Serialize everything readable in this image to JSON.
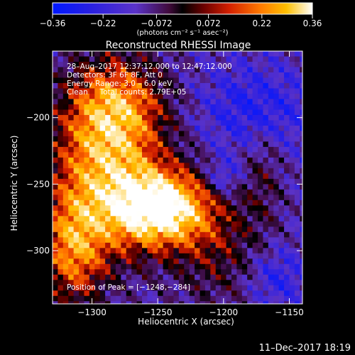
{
  "chart_data": {
    "type": "heatmap",
    "title": "Reconstructed RHESSI Image",
    "xlabel": "Heliocentric X (arcsec)",
    "ylabel": "Heliocentric Y (arcsec)",
    "xlim": [
      -1330,
      -1140
    ],
    "ylim": [
      -340,
      -150
    ],
    "xticks": [
      -1300,
      -1250,
      -1200,
      -1150
    ],
    "yticks": [
      -200,
      -250,
      -300
    ],
    "xtick_labels": [
      "−1300",
      "−1250",
      "−1200",
      "−1150"
    ],
    "ytick_labels": [
      "−200",
      "−250",
      "−300"
    ],
    "colorbar": {
      "range": [
        -0.36,
        0.36
      ],
      "ticks": [
        -0.36,
        -0.22,
        -0.072,
        0.072,
        0.22,
        0.36
      ],
      "tick_labels": [
        "−0.36",
        "−0.22",
        "−0.072",
        "0.072",
        "0.22",
        "0.36"
      ],
      "unit_label": "(photons cm⁻² s⁻¹ asec⁻²)"
    },
    "annotations": [
      "28–Aug–2017 12:37:12.000 to 12:47:12.000",
      "Detectors: 3F 6F 8F, Att 0",
      "Energy Range: 3.0 – 6.0 keV",
      "Clean     Total counts: 2.79E+05"
    ],
    "peak_label": "Position of Peak = [−1248,−284]",
    "peak": [
      -1248,
      -284
    ],
    "grid": false
  },
  "footer": {
    "timestamp": "11–Dec–2017 18:19"
  }
}
